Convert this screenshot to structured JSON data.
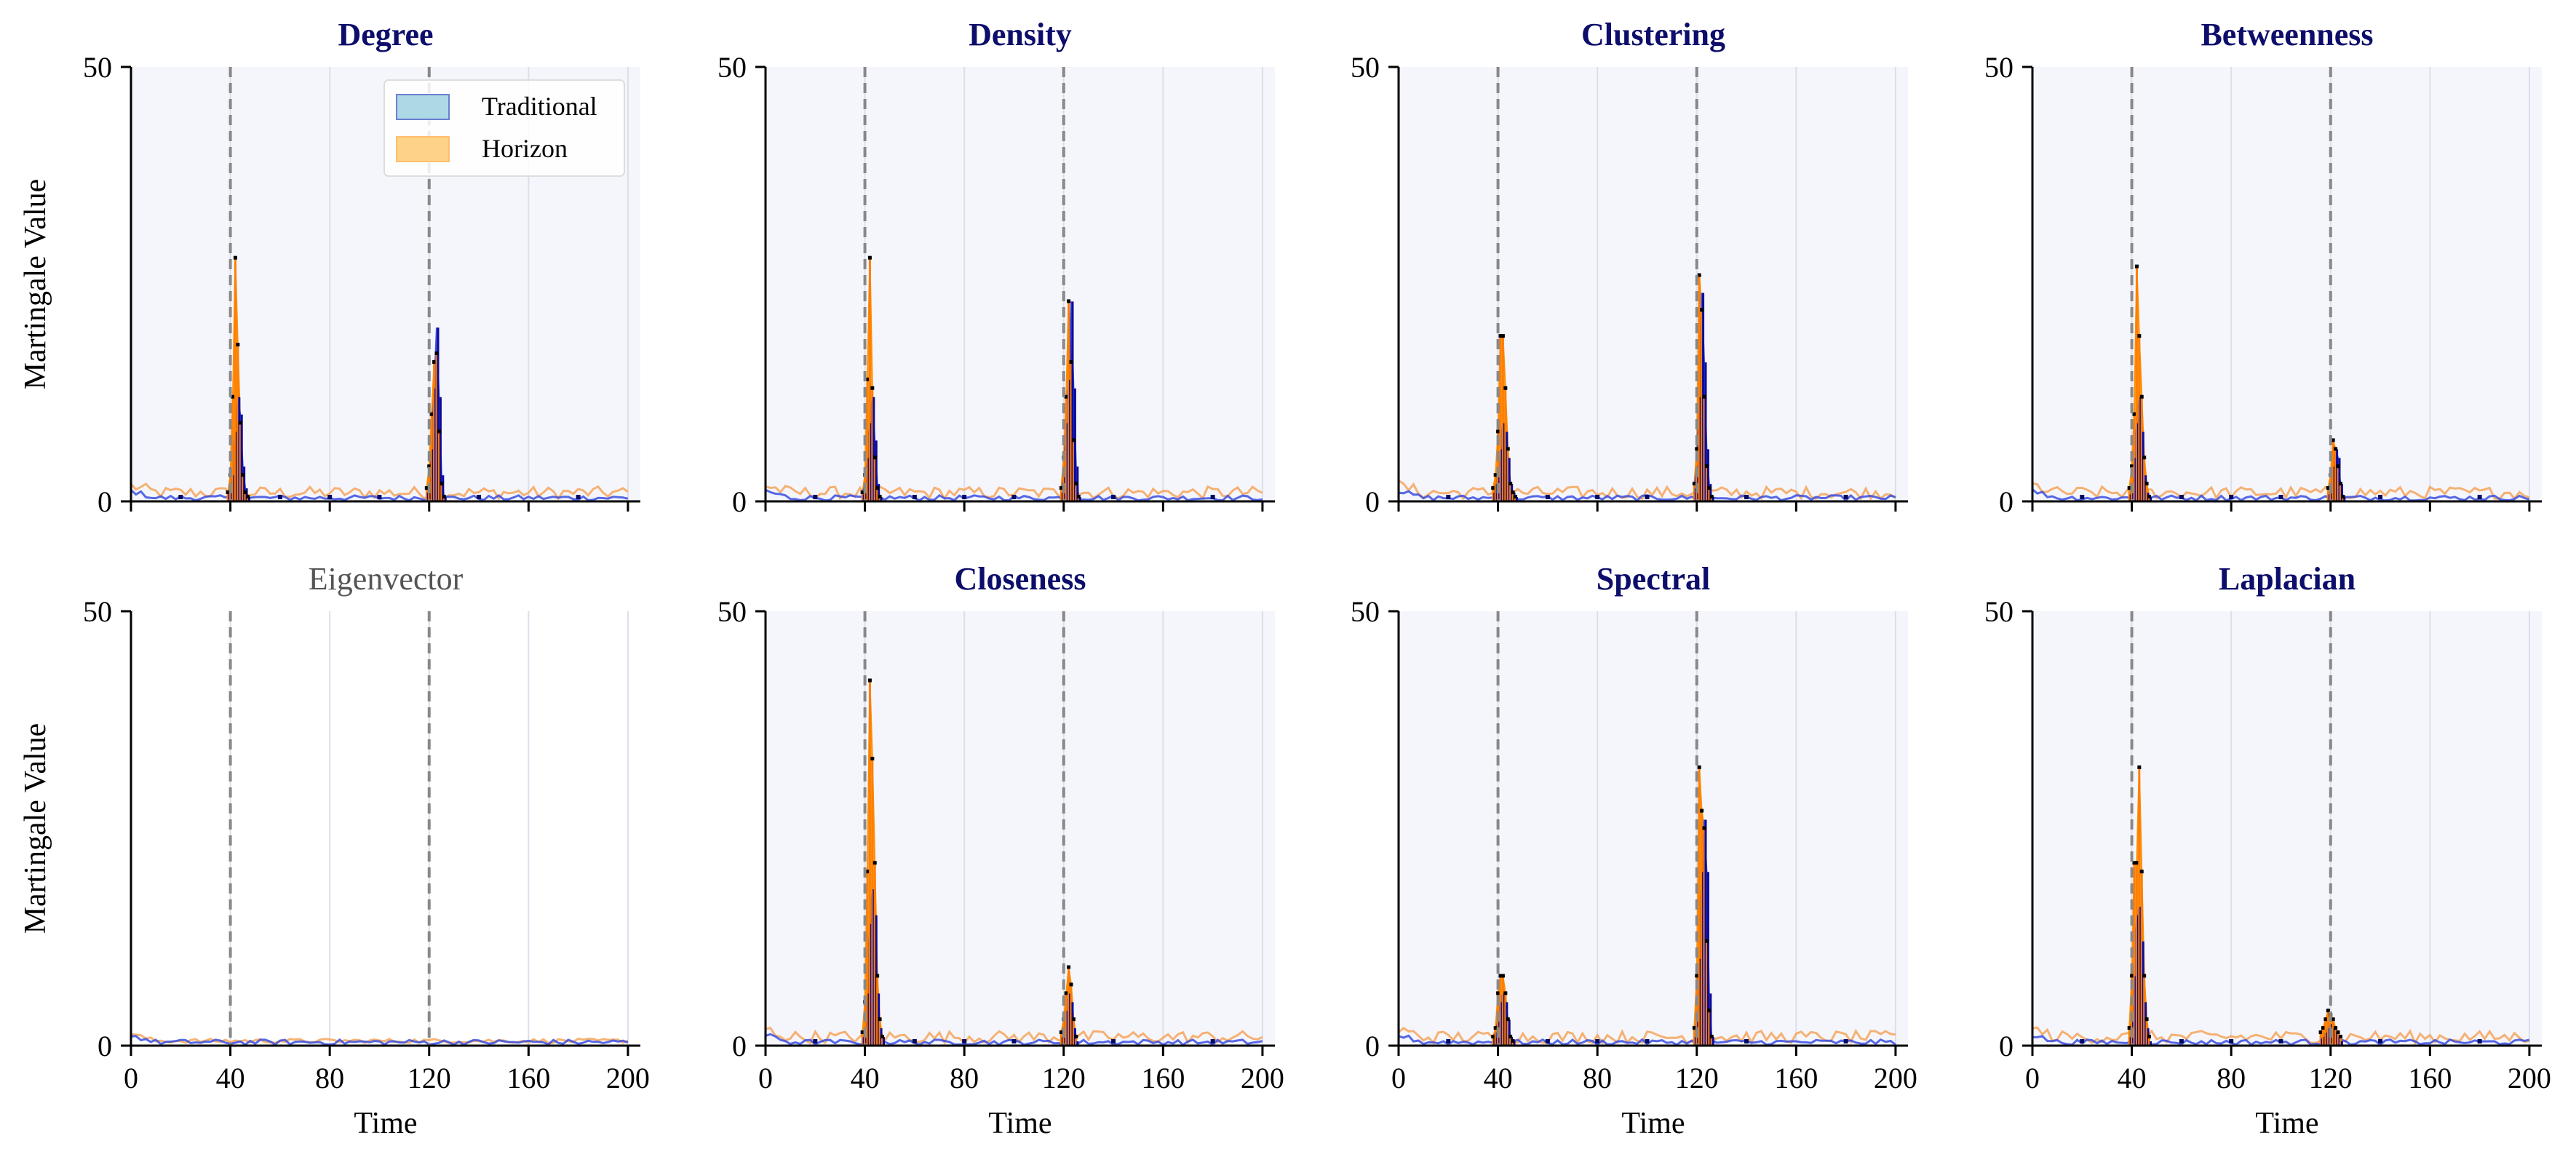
{
  "chart_data": {
    "type": "line",
    "layout": "2x4 small multiples",
    "xlabel": "Time",
    "ylabel": "Martingale Value",
    "xlim": [
      0,
      205
    ],
    "ylim": [
      0,
      50
    ],
    "x_ticks": [
      0,
      40,
      80,
      120,
      160,
      200
    ],
    "y_ticks": [
      0,
      50
    ],
    "change_points": [
      40,
      120
    ],
    "legend": {
      "placement": "top-right of first panel",
      "entries": [
        {
          "label": "Traditional",
          "color": "#add8e6"
        },
        {
          "label": "Horizon",
          "color": "#ffd28a"
        }
      ]
    },
    "colors": {
      "traditional_line": "#3a4fe0",
      "traditional_fill": "#1a1acc",
      "horizon_line": "#f5a050",
      "horizon_fill": "#ff8c00",
      "title_active": "#0d0d6b",
      "title_inactive": "#555555",
      "panel_background": "#f5f6fc",
      "changepoint_line": "#888888",
      "grid": "#dcdfea"
    },
    "panels": [
      {
        "title": "Degree",
        "active": true,
        "peaks": [
          {
            "x": [
              39,
              40,
              41,
              42,
              43,
              44,
              45,
              46,
              47
            ],
            "traditional": [
              0.8,
              1.5,
              3,
              8,
              12,
              10,
              4,
              1.5,
              0.5
            ],
            "horizon": [
              1,
              3,
              12,
              28,
              18,
              9,
              3,
              1,
              0.5
            ]
          },
          {
            "x": [
              119,
              120,
              121,
              122,
              123,
              124,
              125,
              126
            ],
            "traditional": [
              1,
              2,
              6,
              13,
              20,
              12,
              3,
              0.5
            ],
            "horizon": [
              1.5,
              4,
              10,
              16,
              17,
              8,
              2,
              0.5
            ]
          }
        ]
      },
      {
        "title": "Density",
        "active": true,
        "peaks": [
          {
            "x": [
              39,
              40,
              41,
              42,
              43,
              44,
              45,
              46
            ],
            "traditional": [
              0.8,
              2,
              5,
              9,
              12,
              7,
              2,
              0.5
            ],
            "horizon": [
              1,
              3,
              14,
              28,
              13,
              5,
              1.5,
              0.5
            ]
          },
          {
            "x": [
              119,
              120,
              121,
              122,
              123,
              124,
              125,
              126
            ],
            "traditional": [
              1,
              3,
              9,
              14,
              23,
              13,
              4,
              0.5
            ],
            "horizon": [
              1.5,
              5,
              12,
              23,
              16,
              7,
              2,
              0.5
            ]
          }
        ]
      },
      {
        "title": "Clustering",
        "active": true,
        "peaks": [
          {
            "x": [
              38,
              39,
              40,
              41,
              42,
              43,
              44,
              45,
              46,
              47
            ],
            "traditional": [
              1,
              2,
              3,
              6,
              9,
              8,
              5,
              2,
              1,
              0.5
            ],
            "horizon": [
              1.5,
              3,
              8,
              19,
              19,
              13,
              6,
              2,
              1,
              0.5
            ]
          },
          {
            "x": [
              119,
              120,
              121,
              122,
              123,
              124,
              125,
              126
            ],
            "traditional": [
              1.5,
              4,
              12,
              24,
              16,
              6,
              2,
              0.5
            ],
            "horizon": [
              2,
              6,
              26,
              22,
              12,
              4,
              1.5,
              0.5
            ]
          }
        ]
      },
      {
        "title": "Betweenness",
        "active": true,
        "peaks": [
          {
            "x": [
              39,
              40,
              41,
              42,
              43,
              44,
              45,
              46,
              47
            ],
            "traditional": [
              0.8,
              2,
              5,
              9,
              12,
              8,
              3,
              1,
              0.5
            ],
            "horizon": [
              1.5,
              4,
              10,
              27,
              19,
              12,
              5,
              2,
              0.5
            ]
          },
          {
            "x": [
              119,
              120,
              121,
              122,
              123,
              124,
              125
            ],
            "traditional": [
              0.8,
              2,
              4,
              6,
              5,
              2,
              0.5
            ],
            "horizon": [
              1.5,
              3,
              7,
              6,
              4,
              2,
              0.5
            ]
          }
        ]
      },
      {
        "title": "Eigenvector",
        "active": false,
        "peaks": []
      },
      {
        "title": "Closeness",
        "active": true,
        "peaks": [
          {
            "x": [
              39,
              40,
              41,
              42,
              43,
              44,
              45,
              46,
              47
            ],
            "traditional": [
              1,
              2,
              6,
              14,
              18,
              15,
              6,
              2,
              1
            ],
            "horizon": [
              1.5,
              5,
              20,
              42,
              33,
              21,
              8,
              3,
              1
            ]
          },
          {
            "x": [
              119,
              120,
              121,
              122,
              123,
              124,
              125
            ],
            "traditional": [
              1,
              2,
              4,
              6,
              5,
              2,
              0.5
            ],
            "horizon": [
              1.5,
              3,
              6,
              9,
              7,
              3,
              1
            ]
          }
        ]
      },
      {
        "title": "Spectral",
        "active": true,
        "peaks": [
          {
            "x": [
              38,
              39,
              40,
              41,
              42,
              43,
              44,
              45,
              46
            ],
            "traditional": [
              1,
              1.5,
              3,
              5,
              6,
              5,
              3,
              1,
              0.5
            ],
            "horizon": [
              1,
              2,
              6,
              8,
              8,
              6,
              3,
              1,
              0.5
            ]
          },
          {
            "x": [
              119,
              120,
              121,
              122,
              123,
              124,
              125,
              126
            ],
            "traditional": [
              1,
              3,
              10,
              20,
              26,
              20,
              6,
              1
            ],
            "horizon": [
              2,
              8,
              32,
              27,
              25,
              12,
              4,
              1
            ]
          }
        ]
      },
      {
        "title": "Laplacian",
        "active": true,
        "peaks": [
          {
            "x": [
              39,
              40,
              41,
              42,
              43,
              44,
              45,
              46,
              47
            ],
            "traditional": [
              1,
              3,
              8,
              15,
              16,
              12,
              5,
              2,
              0.5
            ],
            "horizon": [
              2,
              8,
              21,
              21,
              32,
              20,
              8,
              3,
              1
            ]
          },
          {
            "x": [
              116,
              117,
              118,
              119,
              120,
              121,
              122,
              123,
              124
            ],
            "traditional": [
              0.8,
              1,
              1.5,
              2,
              2.5,
              2,
              1.5,
              1,
              0.5
            ],
            "horizon": [
              1.5,
              2,
              3,
              4,
              3.5,
              3,
              2,
              1.5,
              1
            ]
          }
        ]
      }
    ]
  }
}
